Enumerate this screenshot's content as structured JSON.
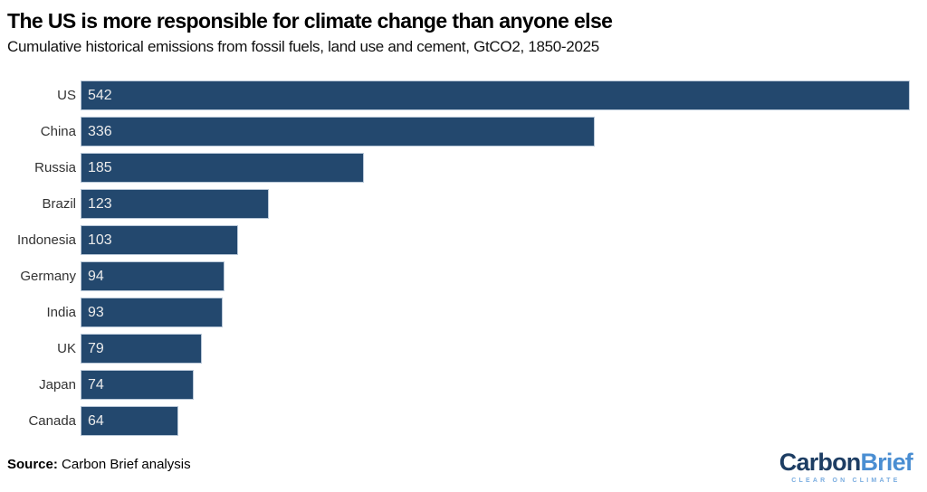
{
  "header": {
    "title": "The US is more responsible for climate change than anyone else",
    "subtitle": "Cumulative historical emissions from fossil fuels, land use and cement, GtCO2, 1850-2025"
  },
  "chart_data": {
    "type": "bar",
    "orientation": "horizontal",
    "categories": [
      "US",
      "China",
      "Russia",
      "Brazil",
      "Indonesia",
      "Germany",
      "India",
      "UK",
      "Japan",
      "Canada"
    ],
    "values": [
      542,
      336,
      185,
      123,
      103,
      94,
      93,
      79,
      74,
      64
    ],
    "title": "The US is more responsible for climate change than anyone else",
    "subtitle": "Cumulative historical emissions from fossil fuels, land use and cement, GtCO2, 1850-2025",
    "xlabel": "",
    "ylabel": "",
    "xlim": [
      0,
      542
    ],
    "grid": false,
    "legend": false,
    "value_labels_inside_bars": true,
    "bar_color": "#23486e",
    "value_label_color": "#ececec"
  },
  "footer": {
    "source_label": "Source:",
    "source_text": " Carbon Brief analysis"
  },
  "logo": {
    "part1": "Carbon",
    "part2": "Brief",
    "tagline": "CLEAR ON CLIMATE",
    "part1_color": "#1d3d63",
    "part2_color": "#4a8ed2",
    "tagline_color": "#7aade0"
  }
}
